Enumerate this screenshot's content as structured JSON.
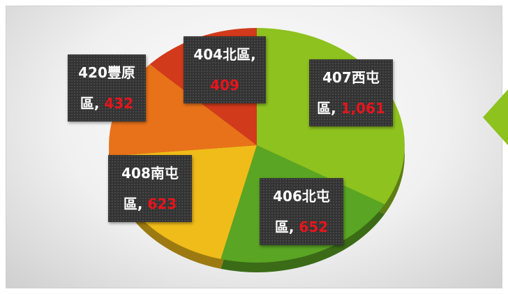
{
  "chart_data": {
    "type": "pie",
    "categories": [
      "407西屯區",
      "406北屯區",
      "408南屯區",
      "420豐原區",
      "404北區"
    ],
    "values": [
      1061,
      652,
      623,
      432,
      409
    ],
    "value_labels": [
      "1,061",
      "652",
      "623",
      "432",
      "409"
    ],
    "label_separator": ",",
    "colors": [
      "#8dc21f",
      "#5aa523",
      "#f0bc1a",
      "#e8721a",
      "#d23a1c"
    ]
  }
}
